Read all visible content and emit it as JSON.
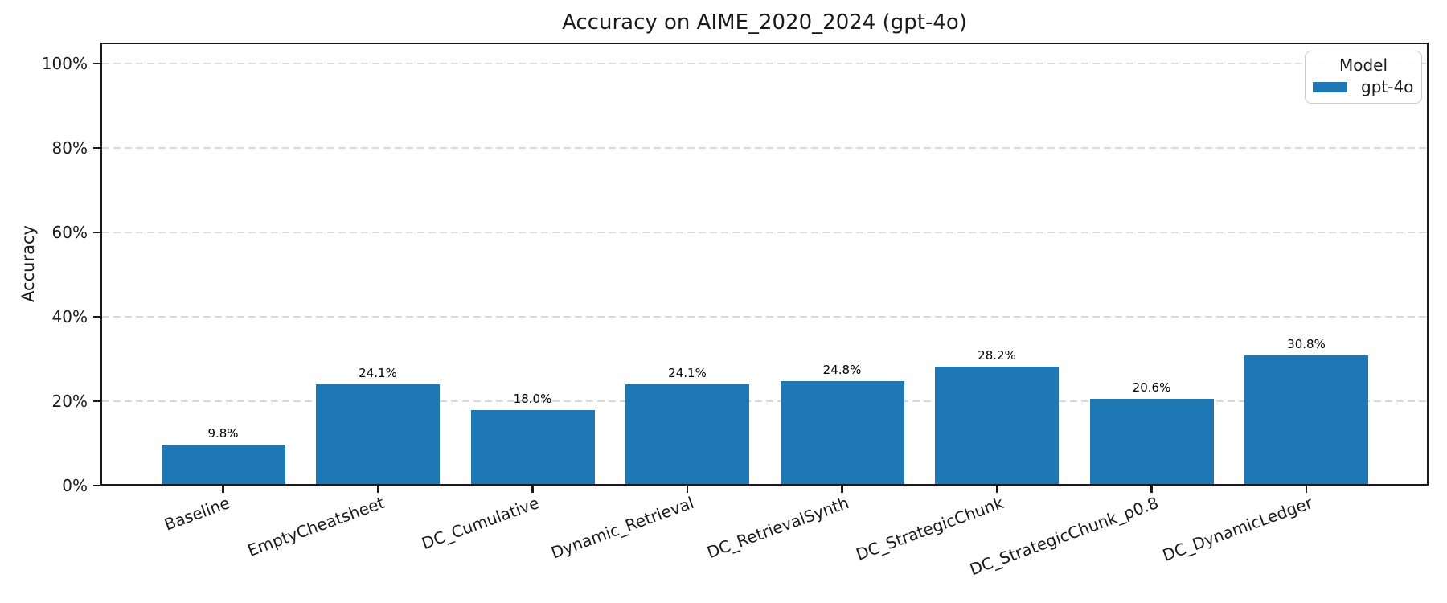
{
  "chart_data": {
    "type": "bar",
    "title": "Accuracy on AIME_2020_2024 (gpt-4o)",
    "xlabel": "",
    "ylabel": "Accuracy",
    "categories": [
      "Baseline",
      "EmptyCheatsheet",
      "DC_Cumulative",
      "Dynamic_Retrieval",
      "DC_RetrievalSynth",
      "DC_StrategicChunk",
      "DC_StrategicChunk_p0.8",
      "DC_DynamicLedger"
    ],
    "series": [
      {
        "name": "gpt-4o",
        "color": "#1f77b4",
        "values": [
          9.8,
          24.1,
          18.0,
          24.1,
          24.8,
          28.2,
          20.6,
          30.8
        ]
      }
    ],
    "bar_labels": [
      "9.8%",
      "24.1%",
      "18.0%",
      "24.1%",
      "24.8%",
      "28.2%",
      "20.6%",
      "30.8%"
    ],
    "yticks": [
      "0%",
      "20%",
      "40%",
      "60%",
      "80%",
      "100%"
    ],
    "ytick_values": [
      0,
      20,
      40,
      60,
      80,
      100
    ],
    "ylim": [
      0,
      105
    ],
    "grid": "horizontal-dashed",
    "legend": {
      "title": "Model",
      "position": "upper-right",
      "entries": [
        {
          "label": "gpt-4o",
          "color": "#1f77b4"
        }
      ]
    },
    "colors": {
      "bar": "#1f77b4",
      "grid": "#d9d9d9",
      "spine": "#1a1a1a",
      "text": "#000000"
    }
  }
}
